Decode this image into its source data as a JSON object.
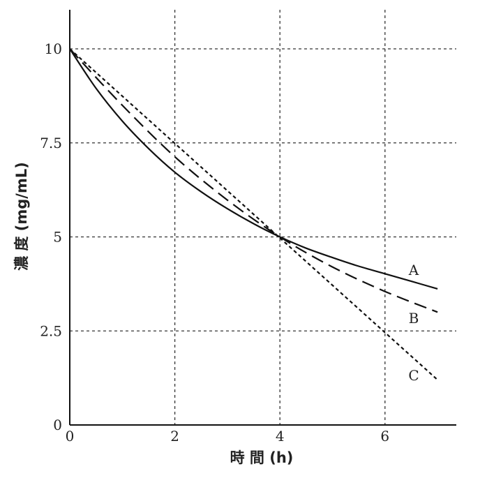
{
  "chart_data": {
    "type": "line",
    "title": "",
    "xlabel": "時 間 (h)",
    "ylabel": "濃 度 (mg/mL)",
    "xlim": [
      0,
      7.3
    ],
    "ylim": [
      0,
      10.8
    ],
    "xticks": [
      0,
      2,
      4,
      6
    ],
    "xtick_labels": [
      "0",
      "2",
      "4",
      "6"
    ],
    "yticks": [
      0,
      2.5,
      5,
      7.5,
      10
    ],
    "ytick_labels": [
      "0",
      "2.5",
      "5",
      "7.5",
      "10"
    ],
    "grid": true,
    "series": [
      {
        "name": "A",
        "style": "solid",
        "x": [
          0,
          0.5,
          1,
          1.5,
          2,
          2.5,
          3,
          3.5,
          4,
          4.5,
          5,
          5.5,
          6,
          6.5,
          7
        ],
        "y": [
          10,
          8.95,
          8.08,
          7.35,
          6.72,
          6.2,
          5.75,
          5.35,
          5.0,
          4.7,
          4.45,
          4.22,
          4.02,
          3.82,
          3.62
        ]
      },
      {
        "name": "B",
        "style": "dashed",
        "x": [
          0,
          1,
          2,
          3,
          4,
          5,
          6,
          7
        ],
        "y": [
          10,
          8.5,
          7.13,
          5.98,
          5.0,
          4.2,
          3.55,
          3.0
        ]
      },
      {
        "name": "C",
        "style": "dotted",
        "x": [
          0,
          7
        ],
        "y": [
          10,
          1.2
        ]
      }
    ]
  }
}
